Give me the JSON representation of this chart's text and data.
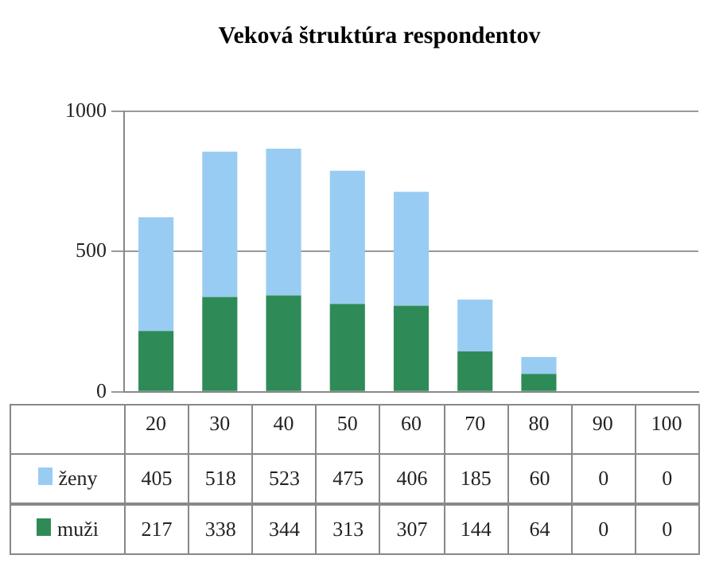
{
  "chart_data": {
    "type": "bar",
    "title": "Veková štruktúra respondentov",
    "categories": [
      "20",
      "30",
      "40",
      "50",
      "60",
      "70",
      "80",
      "90",
      "100"
    ],
    "stacked": true,
    "series": [
      {
        "name": "muži",
        "color": "#2e8b57",
        "values": [
          217,
          338,
          344,
          313,
          307,
          144,
          64,
          0,
          0
        ]
      },
      {
        "name": "ženy",
        "color": "#99ccf2",
        "values": [
          405,
          518,
          523,
          475,
          406,
          185,
          60,
          0,
          0
        ]
      }
    ],
    "ylim": [
      0,
      1000
    ],
    "yticks": [
      0,
      500,
      1000
    ],
    "grid": "y",
    "legend": "bottom",
    "data_labels": true
  }
}
